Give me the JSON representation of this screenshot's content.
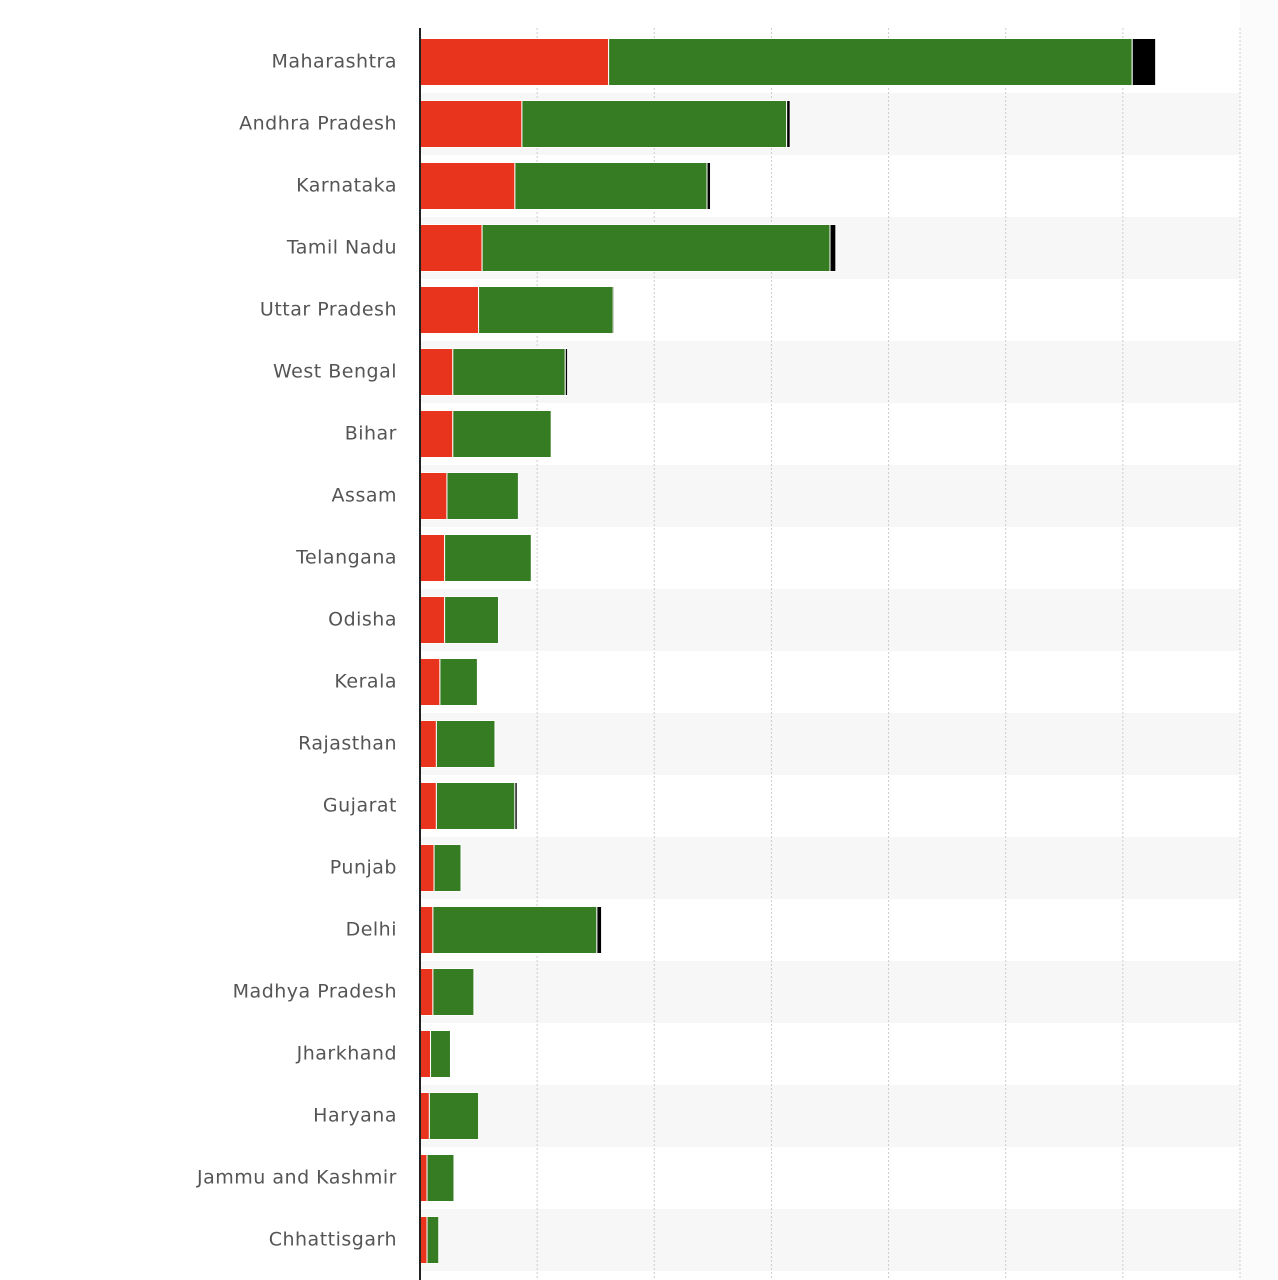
{
  "chart_data": {
    "type": "stacked-barh",
    "categories": [
      "Maharashtra",
      "Andhra Pradesh",
      "Karnataka",
      "Tamil Nadu",
      "Uttar Pradesh",
      "West Bengal",
      "Bihar",
      "Assam",
      "Telangana",
      "Odisha",
      "Kerala",
      "Rajasthan",
      "Gujarat",
      "Punjab",
      "Delhi",
      "Madhya Pradesh",
      "Jharkhand",
      "Haryana",
      "Jammu and Kashmir",
      "Chhattisgarh"
    ],
    "series": [
      {
        "color": "#e8341c",
        "values": [
          1.61,
          0.87,
          0.81,
          0.53,
          0.5,
          0.28,
          0.28,
          0.23,
          0.21,
          0.21,
          0.17,
          0.14,
          0.14,
          0.12,
          0.11,
          0.11,
          0.09,
          0.08,
          0.06,
          0.06
        ]
      },
      {
        "color": "#367c23",
        "values": [
          4.47,
          2.26,
          1.64,
          2.97,
          1.15,
          0.96,
          0.84,
          0.61,
          0.74,
          0.46,
          0.32,
          0.5,
          0.67,
          0.23,
          1.4,
          0.35,
          0.17,
          0.42,
          0.23,
          0.1
        ]
      },
      {
        "color": "#000000",
        "values": [
          0.2,
          0.03,
          0.03,
          0.05,
          0.01,
          0.02,
          0,
          0,
          0,
          0,
          0,
          0,
          0.02,
          0,
          0.04,
          0,
          0,
          0,
          0,
          0
        ]
      }
    ],
    "xlim": [
      0,
      7
    ],
    "xticks": [
      0,
      1,
      2,
      3,
      4,
      5,
      6,
      7
    ],
    "grid": true
  }
}
